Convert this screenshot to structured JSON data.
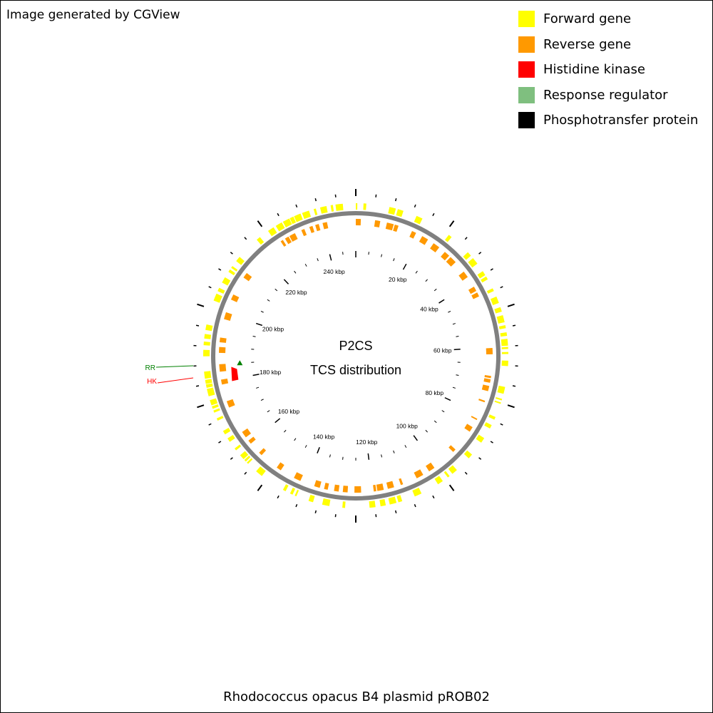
{
  "header": {
    "note": "Image generated by CGView"
  },
  "legend": {
    "items": [
      {
        "label": "Forward gene",
        "color": "#ffff00"
      },
      {
        "label": "Reverse gene",
        "color": "#ff9900"
      },
      {
        "label": "Histidine kinase",
        "color": "#ff0000"
      },
      {
        "label": "Response regulator",
        "color": "#7fbf7f"
      },
      {
        "label": "Phosphotransfer protein",
        "color": "#000000"
      }
    ]
  },
  "map": {
    "center_title": "P2CS",
    "center_subtitle": "TCS distribution",
    "footer_title": "Rhodococcus opacus B4 plasmid pROB02",
    "sequence_length_kbp": 250,
    "tick_labels": [
      "20 kbp",
      "40 kbp",
      "60 kbp",
      "80 kbp",
      "100 kbp",
      "120 kbp",
      "140 kbp",
      "160 kbp",
      "180 kbp",
      "200 kbp",
      "220 kbp",
      "240 kbp"
    ],
    "features": [
      {
        "label": "RR",
        "type": "Response regulator",
        "color": "#008000",
        "position_kbp": 185
      },
      {
        "label": "HK",
        "type": "Histidine kinase",
        "color": "#ff0000",
        "position_kbp": 182.5
      }
    ],
    "backbone_color": "#808080"
  }
}
